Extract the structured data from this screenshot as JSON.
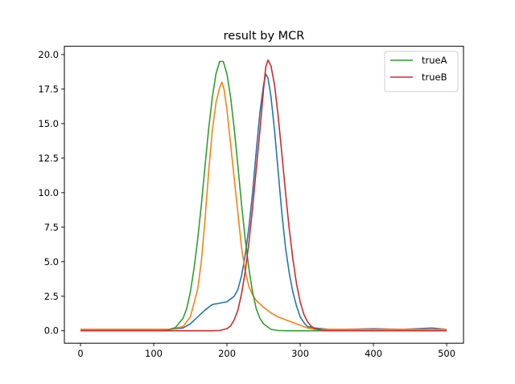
{
  "chart_data": {
    "type": "line",
    "title": "result by MCR",
    "xlabel": "",
    "ylabel": "",
    "xlim": [
      -22,
      523
    ],
    "ylim": [
      -0.9,
      20.6
    ],
    "x_ticks": [
      0,
      100,
      200,
      300,
      400,
      500
    ],
    "x_tick_labels": [
      "0",
      "100",
      "200",
      "300",
      "400",
      "500"
    ],
    "y_ticks": [
      0,
      2.5,
      5,
      7.5,
      10,
      12.5,
      15,
      17.5,
      20
    ],
    "y_tick_labels": [
      "0.0",
      "2.5",
      "5.0",
      "7.5",
      "10.0",
      "12.5",
      "15.0",
      "17.5",
      "20.0"
    ],
    "grid": false,
    "legend_position": "top-right",
    "series": [
      {
        "name": "",
        "color": "#1f77b4",
        "in_legend": false,
        "x": [
          0,
          20,
          40,
          60,
          80,
          100,
          120,
          140,
          150,
          160,
          170,
          180,
          190,
          200,
          205,
          210,
          215,
          220,
          225,
          230,
          235,
          240,
          245,
          250,
          253,
          256,
          260,
          265,
          270,
          275,
          280,
          285,
          290,
          295,
          300,
          305,
          310,
          320,
          340,
          360,
          400,
          440,
          480,
          500
        ],
        "y": [
          0.1,
          0.1,
          0.1,
          0.1,
          0.1,
          0.1,
          0.1,
          0.2,
          0.5,
          1.0,
          1.5,
          1.9,
          2.0,
          2.1,
          2.3,
          2.5,
          3.0,
          4.0,
          5.5,
          7.5,
          10.0,
          13.0,
          15.8,
          17.8,
          18.6,
          18.3,
          17.0,
          14.5,
          11.5,
          8.5,
          6.0,
          4.2,
          2.8,
          1.8,
          1.0,
          0.6,
          0.3,
          0.2,
          0.1,
          0.1,
          0.15,
          0.1,
          0.2,
          0.1
        ]
      },
      {
        "name": "",
        "color": "#ff7f0e",
        "in_legend": false,
        "x": [
          0,
          20,
          40,
          60,
          80,
          100,
          120,
          140,
          150,
          160,
          165,
          170,
          175,
          180,
          185,
          190,
          193,
          196,
          200,
          205,
          210,
          215,
          220,
          225,
          230,
          235,
          240,
          250,
          260,
          270,
          280,
          290,
          300,
          310,
          320,
          340,
          360,
          400,
          440,
          480,
          500
        ],
        "y": [
          0.1,
          0.1,
          0.1,
          0.1,
          0.1,
          0.1,
          0.1,
          0.3,
          1.0,
          3.0,
          5.0,
          8.0,
          11.5,
          14.5,
          16.5,
          17.6,
          18.0,
          17.5,
          16.0,
          13.5,
          11.0,
          8.5,
          6.0,
          4.3,
          3.2,
          2.6,
          2.2,
          1.7,
          1.3,
          1.0,
          0.8,
          0.6,
          0.4,
          0.2,
          0.1,
          0.1,
          0.1,
          0.1,
          0.1,
          0.1,
          0.1
        ]
      },
      {
        "name": "trueA",
        "color": "#2ca02c",
        "in_legend": true,
        "x": [
          0,
          20,
          40,
          60,
          80,
          100,
          110,
          120,
          130,
          140,
          145,
          150,
          155,
          160,
          165,
          170,
          175,
          180,
          185,
          190,
          195,
          200,
          205,
          210,
          215,
          220,
          225,
          230,
          235,
          240,
          245,
          250,
          260,
          270,
          280,
          290,
          300,
          320,
          360,
          400,
          440,
          480,
          500
        ],
        "y": [
          0,
          0,
          0,
          0,
          0,
          0,
          0,
          0.05,
          0.25,
          0.9,
          1.6,
          2.8,
          4.5,
          6.6,
          9.1,
          11.9,
          14.6,
          16.9,
          18.6,
          19.5,
          19.5,
          18.6,
          16.9,
          14.6,
          11.9,
          9.1,
          6.6,
          4.5,
          2.8,
          1.6,
          0.9,
          0.5,
          0.1,
          0.02,
          0,
          0,
          0,
          0,
          0,
          0,
          0,
          0,
          0
        ]
      },
      {
        "name": "trueB",
        "color": "#d62728",
        "in_legend": true,
        "x": [
          0,
          40,
          80,
          120,
          160,
          180,
          190,
          200,
          205,
          210,
          215,
          220,
          225,
          230,
          235,
          240,
          245,
          250,
          253,
          256,
          260,
          265,
          270,
          275,
          280,
          285,
          290,
          295,
          300,
          305,
          310,
          315,
          320,
          330,
          340,
          360,
          400,
          440,
          480,
          500
        ],
        "y": [
          0,
          0,
          0,
          0,
          0,
          0,
          0.02,
          0.15,
          0.35,
          0.8,
          1.5,
          2.7,
          4.3,
          6.4,
          8.9,
          11.7,
          14.5,
          17.5,
          19.1,
          19.6,
          19.2,
          17.8,
          15.5,
          12.8,
          10.0,
          7.4,
          5.2,
          3.4,
          2.1,
          1.2,
          0.65,
          0.33,
          0.15,
          0.03,
          0,
          0,
          0,
          0,
          0,
          0
        ]
      }
    ]
  }
}
